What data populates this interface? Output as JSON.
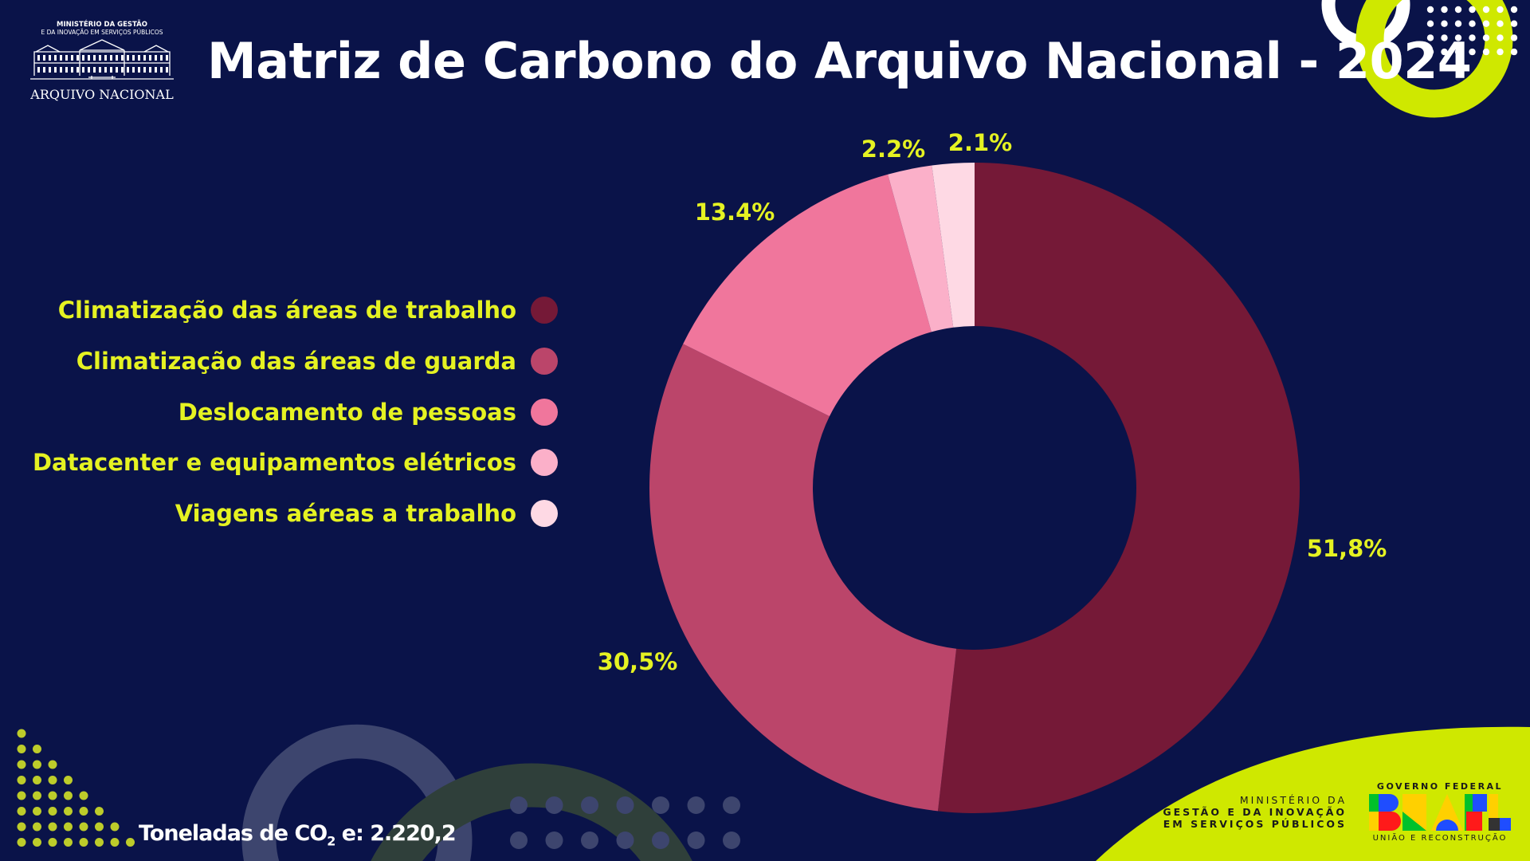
{
  "header": {
    "title": "Matriz de Carbono do Arquivo Nacional - 2024",
    "logo": {
      "line1": "MINISTÉRIO DA GESTÃO",
      "line2": "E DA INOVAÇÃO EM SERVIÇOS PÚBLICOS",
      "name": "ARQUIVO NACIONAL"
    }
  },
  "chart_data": {
    "type": "pie",
    "donut": true,
    "title": "Matriz de Carbono do Arquivo Nacional - 2024",
    "legend_position": "left",
    "categories": [
      "Climatização das áreas de trabalho",
      "Climatização das áreas de guarda",
      "Deslocamento de pessoas",
      "Datacenter e equipamentos elétricos",
      "Viagens aéreas a trabalho"
    ],
    "values": [
      51.8,
      30.5,
      13.4,
      2.2,
      2.1
    ],
    "labels": [
      "51,8%",
      "30,5%",
      "13.4%",
      "2.2%",
      "2.1%"
    ],
    "colors": [
      "#751937",
      "#bb456a",
      "#f0769c",
      "#fbb0c9",
      "#fed9e4"
    ]
  },
  "footer": {
    "total_prefix": "Toneladas de CO",
    "total_sub": "2",
    "total_suffix": " e: 2.220,2",
    "ministry": [
      "MINISTÉRIO DA",
      "GESTÃO E DA INOVAÇÃO",
      "EM SERVIÇOS PÚBLICOS"
    ],
    "gov_top": "GOVERNO FEDERAL",
    "gov_logo": "BRASIL",
    "gov_bottom": "UNIÃO E RECONSTRUÇÃO"
  },
  "colors": {
    "background": "#0a1349",
    "accent": "#cfe800",
    "label_text": "#e5f222"
  }
}
